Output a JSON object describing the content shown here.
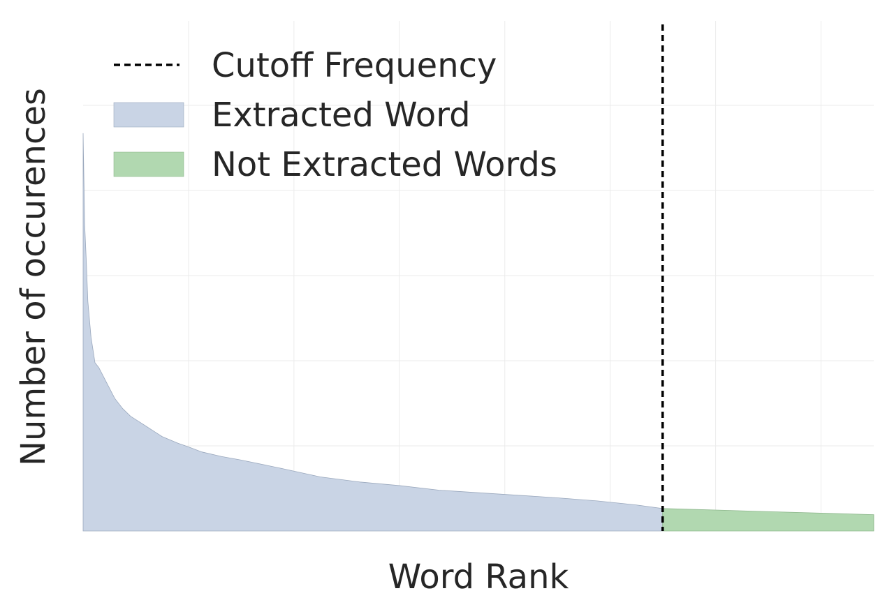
{
  "chart_data": {
    "type": "area",
    "xlabel": "Word Rank",
    "ylabel": "Number of occurences",
    "title": "",
    "grid": true,
    "xlim": [
      0,
      1000
    ],
    "ylim": [
      0,
      100
    ],
    "legend": {
      "placement": "top-left",
      "entries": [
        "Cutoff Frequency",
        "Extracted Word",
        "Not Extracted Words"
      ]
    },
    "cutoff": {
      "label": "Cutoff Frequency",
      "x": 733
    },
    "series": [
      {
        "name": "Extracted Word",
        "color": "#c9d4e5",
        "x": [
          0,
          2,
          4,
          6,
          10,
          15,
          20,
          30,
          40,
          50,
          60,
          70,
          80,
          90,
          100,
          120,
          133,
          150,
          175,
          200,
          250,
          300,
          350,
          400,
          450,
          500,
          550,
          600,
          650,
          700,
          733
        ],
        "y": [
          78,
          60,
          53,
          45,
          38,
          33,
          32,
          29,
          26,
          24,
          22.5,
          21.5,
          20.5,
          19.5,
          18.5,
          17.2,
          16.5,
          15.5,
          14.6,
          13.9,
          12.3,
          10.6,
          9.6,
          8.9,
          8.0,
          7.5,
          7.0,
          6.5,
          5.9,
          5.1,
          4.4
        ]
      },
      {
        "name": "Not Extracted Words",
        "color": "#b1d8b0",
        "x": [
          733,
          800,
          866,
          933,
          1000
        ],
        "y": [
          4.4,
          4.1,
          3.8,
          3.5,
          3.2
        ]
      }
    ]
  }
}
